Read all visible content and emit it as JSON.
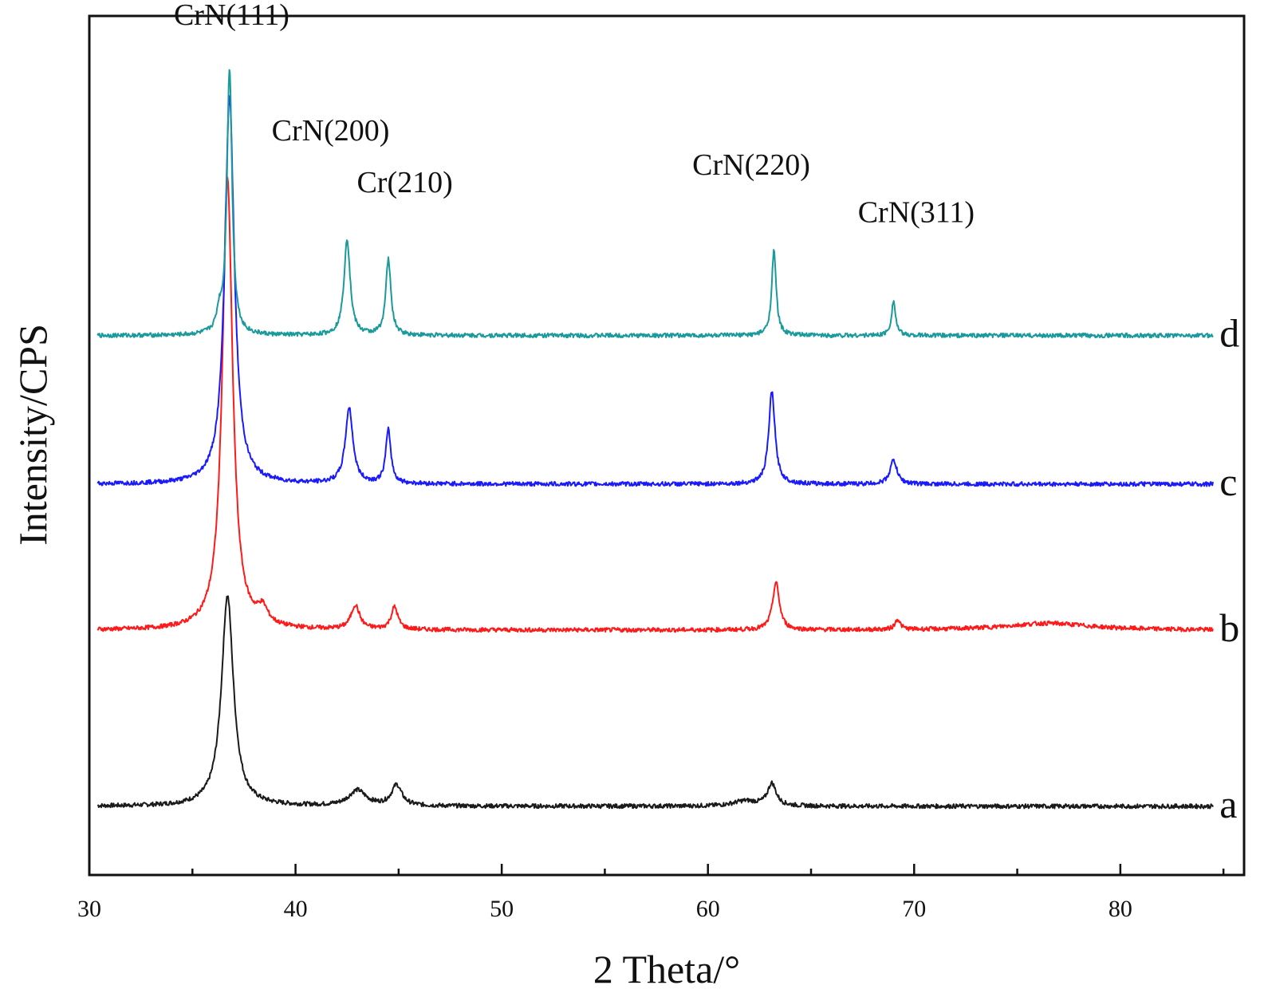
{
  "chart_data": {
    "type": "line",
    "title": "",
    "xlabel": "2 Theta/°",
    "ylabel": "Intensity/CPS",
    "xlim": [
      30,
      86
    ],
    "ylim": [
      0,
      1000
    ],
    "x_ticks_major": [
      30,
      40,
      50,
      60,
      70,
      80
    ],
    "x_ticks_minor": [
      35,
      45,
      55,
      65,
      75,
      85
    ],
    "y_ticks": [],
    "grid": false,
    "legend": "none",
    "x_range": [
      30.4,
      84.5
    ],
    "series": [
      {
        "name": "a",
        "color": "#1a1a1a",
        "baseline": 80,
        "peaks": [
          {
            "x": 36.7,
            "h": 245,
            "w": 0.35
          },
          {
            "x": 43.0,
            "h": 18,
            "w": 0.5
          },
          {
            "x": 44.9,
            "h": 24,
            "w": 0.3
          },
          {
            "x": 61.8,
            "h": 6,
            "w": 0.7
          },
          {
            "x": 63.1,
            "h": 26,
            "w": 0.25
          }
        ]
      },
      {
        "name": "b",
        "color": "#ff1a1a",
        "baseline": 285,
        "peaks": [
          {
            "x": 36.7,
            "h": 525,
            "w": 0.3
          },
          {
            "x": 38.4,
            "h": 18,
            "w": 0.3
          },
          {
            "x": 42.9,
            "h": 28,
            "w": 0.25
          },
          {
            "x": 44.8,
            "h": 26,
            "w": 0.2
          },
          {
            "x": 63.3,
            "h": 55,
            "w": 0.2
          },
          {
            "x": 69.2,
            "h": 12,
            "w": 0.15
          },
          {
            "x": 76.5,
            "h": 8,
            "w": 2.5
          }
        ]
      },
      {
        "name": "c",
        "color": "#1a1aff",
        "baseline": 455,
        "peaks": [
          {
            "x": 36.8,
            "h": 450,
            "w": 0.28
          },
          {
            "x": 42.6,
            "h": 88,
            "w": 0.22
          },
          {
            "x": 44.5,
            "h": 62,
            "w": 0.15
          },
          {
            "x": 63.1,
            "h": 108,
            "w": 0.18
          },
          {
            "x": 69.0,
            "h": 28,
            "w": 0.2
          }
        ]
      },
      {
        "name": "d",
        "color": "#1a9a9a",
        "baseline": 628,
        "peaks": [
          {
            "x": 36.3,
            "h": 20,
            "w": 0.15
          },
          {
            "x": 36.8,
            "h": 310,
            "w": 0.15
          },
          {
            "x": 42.5,
            "h": 112,
            "w": 0.18
          },
          {
            "x": 44.5,
            "h": 88,
            "w": 0.15
          },
          {
            "x": 63.2,
            "h": 98,
            "w": 0.13
          },
          {
            "x": 69.0,
            "h": 40,
            "w": 0.12
          }
        ]
      }
    ],
    "annotations": [
      {
        "text": "CrN(111)",
        "x": 36.9,
        "y": 990
      },
      {
        "text": "CrN(200)",
        "x": 41.7,
        "y": 855
      },
      {
        "text": "Cr(210)",
        "x": 45.3,
        "y": 795
      },
      {
        "text": "CrN(220)",
        "x": 62.1,
        "y": 815
      },
      {
        "text": "CrN(311)",
        "x": 70.1,
        "y": 760
      }
    ]
  }
}
